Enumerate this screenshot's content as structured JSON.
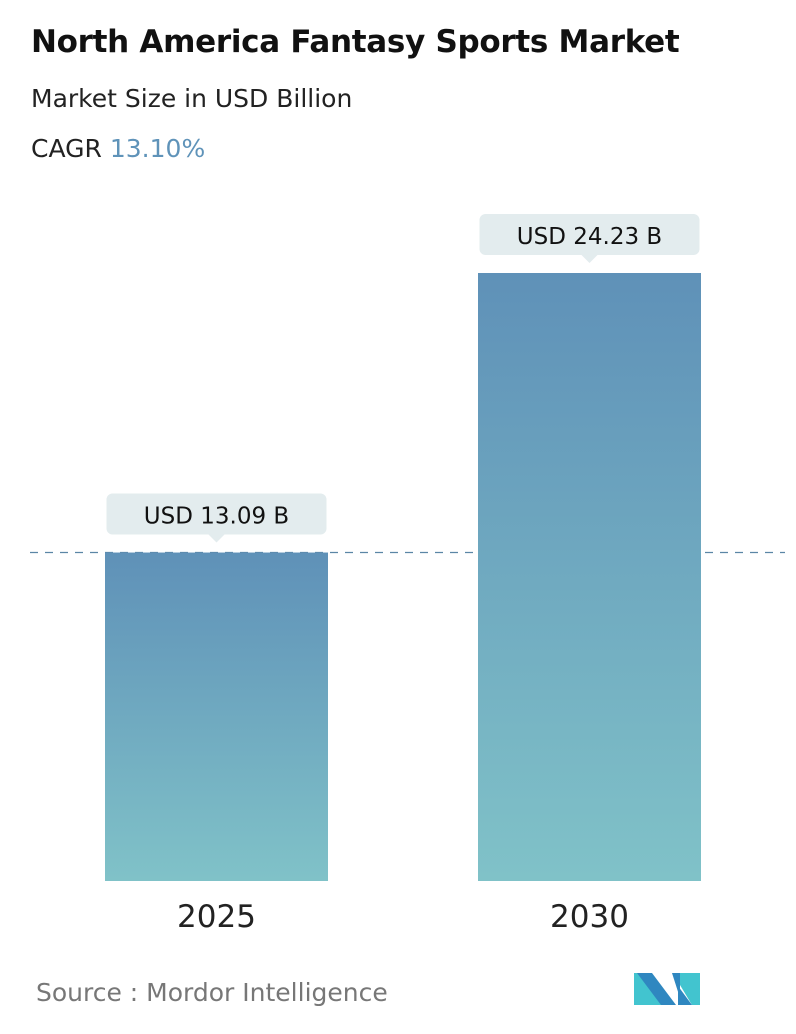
{
  "header": {
    "title": "North America Fantasy Sports Market",
    "subtitle": "Market Size in USD Billion",
    "cagr_label": "CAGR",
    "cagr_value": "13.10%"
  },
  "chart_data": {
    "type": "bar",
    "categories": [
      "2025",
      "2030"
    ],
    "values": [
      13.09,
      24.23
    ],
    "data_labels": [
      "USD 13.09 B",
      "USD 24.23 B"
    ],
    "ylim": [
      0,
      24.23
    ],
    "grid": false,
    "reference_line": "dashed line at first bar value",
    "colors": {
      "bar_top": "#5f91b8",
      "bar_bottom": "#80c2c8",
      "label_bg": "#e3ecee",
      "cagr": "#5f93b9"
    }
  },
  "footer": {
    "source": "Source :  Mordor Intelligence",
    "logo_text": "Mordor Intelligence"
  }
}
